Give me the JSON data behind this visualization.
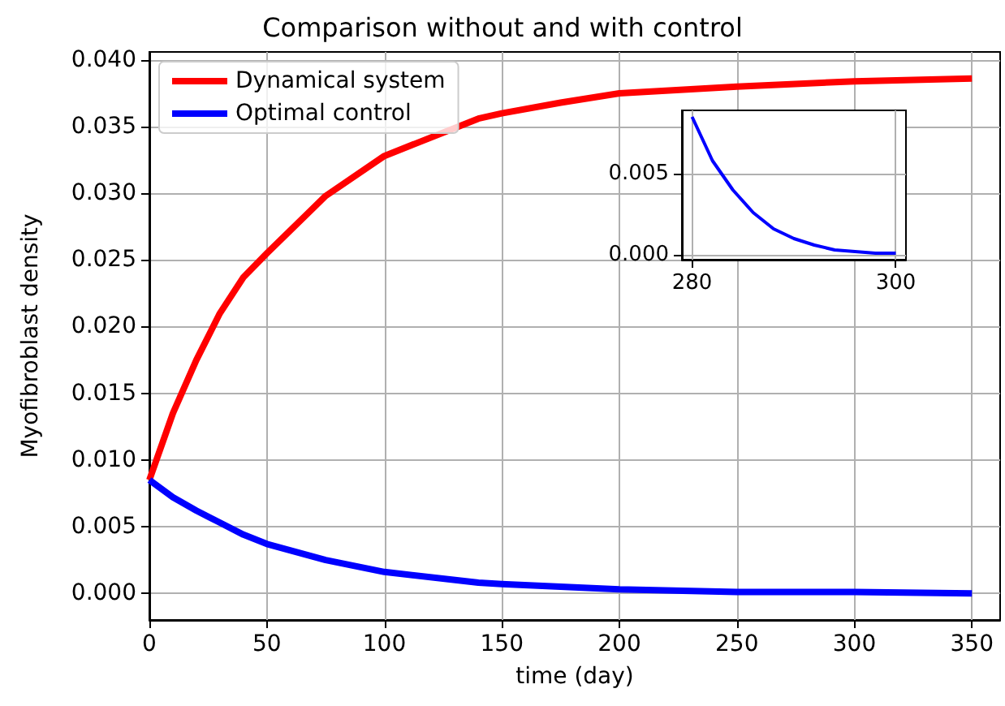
{
  "chart_data": [
    {
      "type": "line",
      "title": "Comparison without and with control",
      "xlabel": "time (day)",
      "ylabel": "Myofibroblast density",
      "x": [
        0,
        10,
        20,
        30,
        40,
        50,
        75,
        100,
        140,
        150,
        175,
        200,
        250,
        300,
        350
      ],
      "series": [
        {
          "name": "Dynamical system",
          "color": "#ff0000",
          "values": [
            0.0085,
            0.0135,
            0.0175,
            0.021,
            0.0237,
            0.0255,
            0.0298,
            0.0328,
            0.0356,
            0.036,
            0.0368,
            0.0375,
            0.038,
            0.0384,
            0.0386
          ]
        },
        {
          "name": "Optimal control",
          "color": "#0000ff",
          "values": [
            0.0085,
            0.0072,
            0.0062,
            0.0053,
            0.0044,
            0.0037,
            0.0025,
            0.0016,
            0.0008,
            0.0007,
            0.0005,
            0.0003,
            0.0001,
            0.0001,
            0
          ]
        }
      ],
      "xlim": [
        0,
        362
      ],
      "ylim": [
        -0.002,
        0.0406
      ],
      "xticks": [
        0,
        50,
        100,
        150,
        200,
        250,
        300,
        350
      ],
      "yticks": [
        {
          "value": 0,
          "label": "0.000"
        },
        {
          "value": 0.005,
          "label": "0.005"
        },
        {
          "value": 0.01,
          "label": "0.010"
        },
        {
          "value": 0.015,
          "label": "0.015"
        },
        {
          "value": 0.02,
          "label": "0.020"
        },
        {
          "value": 0.025,
          "label": "0.025"
        },
        {
          "value": 0.03,
          "label": "0.030"
        },
        {
          "value": 0.035,
          "label": "0.035"
        },
        {
          "value": 0.04,
          "label": "0.040"
        }
      ],
      "grid": true,
      "legend": "top left"
    },
    {
      "type": "line",
      "x": [
        280,
        282,
        284,
        286,
        288,
        290,
        292,
        294,
        296,
        298,
        300
      ],
      "series": [
        {
          "color": "#0000ff",
          "values": [
            0.0085,
            0.0058,
            0.004,
            0.0026,
            0.0016,
            0.001,
            0.0006,
            0.0003,
            0.0002,
            0.0001,
            0.0001
          ]
        }
      ],
      "xlim": [
        279,
        301
      ],
      "ylim": [
        -0.0003,
        0.0089
      ],
      "xticks": [
        280,
        300
      ],
      "yticks": [
        {
          "value": 0,
          "label": "0.000"
        },
        {
          "value": 0.005,
          "label": "0.005"
        }
      ],
      "grid": true
    }
  ]
}
